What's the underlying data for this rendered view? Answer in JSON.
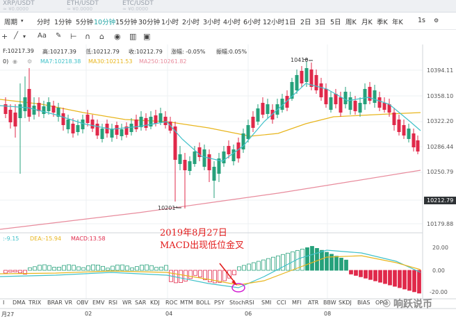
{
  "top_tabs": [
    {
      "label": "XRP/USDT",
      "sub": "≈ ¥0.0000"
    },
    {
      "label": "ETH/USDT",
      "sub": "≈ ¥0.0000"
    },
    {
      "label": "ETC/USDT",
      "sub": "≈ ¥0.0000"
    }
  ],
  "timeframes": [
    "周期",
    "分时",
    "1分钟",
    "5分钟",
    "10分钟",
    "15分钟",
    "30分钟",
    "1小时",
    "2小时",
    "3小时",
    "4小时",
    "6小时",
    "12小时",
    "1日",
    "2日",
    "3日",
    "5日",
    "周K",
    "月K",
    "季K",
    "年K",
    "1s"
  ],
  "active_timeframe": "10分钟",
  "toolbar": {
    "font_label": "Aa"
  },
  "ohlc_row": {
    "open": "F:10217.39",
    "high": "高:10217.39",
    "low": "低:10212.79",
    "close": "收:10212.79",
    "change": "涨幅: -0.05%",
    "amplitude": "振幅:0.05%"
  },
  "ma_row": {
    "prefix": "0)",
    "ma7": "MA7:10218.38",
    "ma30": "MA30:10211.53",
    "ma250": "MA250:10261.82"
  },
  "price_axis": [
    "10394.11",
    "10358.10",
    "10322.20",
    "10286.44",
    "10250.79",
    "10212.79",
    "10179.88"
  ],
  "current_price": "10212.79",
  "high_mark": "10410",
  "low_mark": "10201",
  "macd_row": {
    "dif": ":-9.15",
    "dea": "DEA:-15.94",
    "macd": "MACD:13.58"
  },
  "macd_axis": [
    "20.00",
    "0.00",
    "-20.00"
  ],
  "annotation": {
    "line1": "2019年8月27日",
    "line2": "MACD出现低位金叉"
  },
  "indicators": [
    "I",
    "DMA",
    "TRIX",
    "BRAR",
    "VR",
    "OBV",
    "EMV",
    "RSI",
    "WR",
    "SAR",
    "KDJ",
    "ROC",
    "MTM",
    "BOLL",
    "PSY",
    "StochRSI",
    "SMI",
    "CCI",
    "MFI",
    "ATR",
    "BBW",
    "SKDJ",
    "BIAS",
    "OPO"
  ],
  "dates": [
    "月27",
    "02",
    "04",
    "06",
    "08"
  ],
  "watermark": "响跃说币",
  "colors": {
    "up": "#26a17b",
    "down": "#e0294a",
    "ma7": "#3fc1c9",
    "ma30": "#e8b51c",
    "ma250": "#e88b9c",
    "teal": "#1fa3a3"
  }
}
